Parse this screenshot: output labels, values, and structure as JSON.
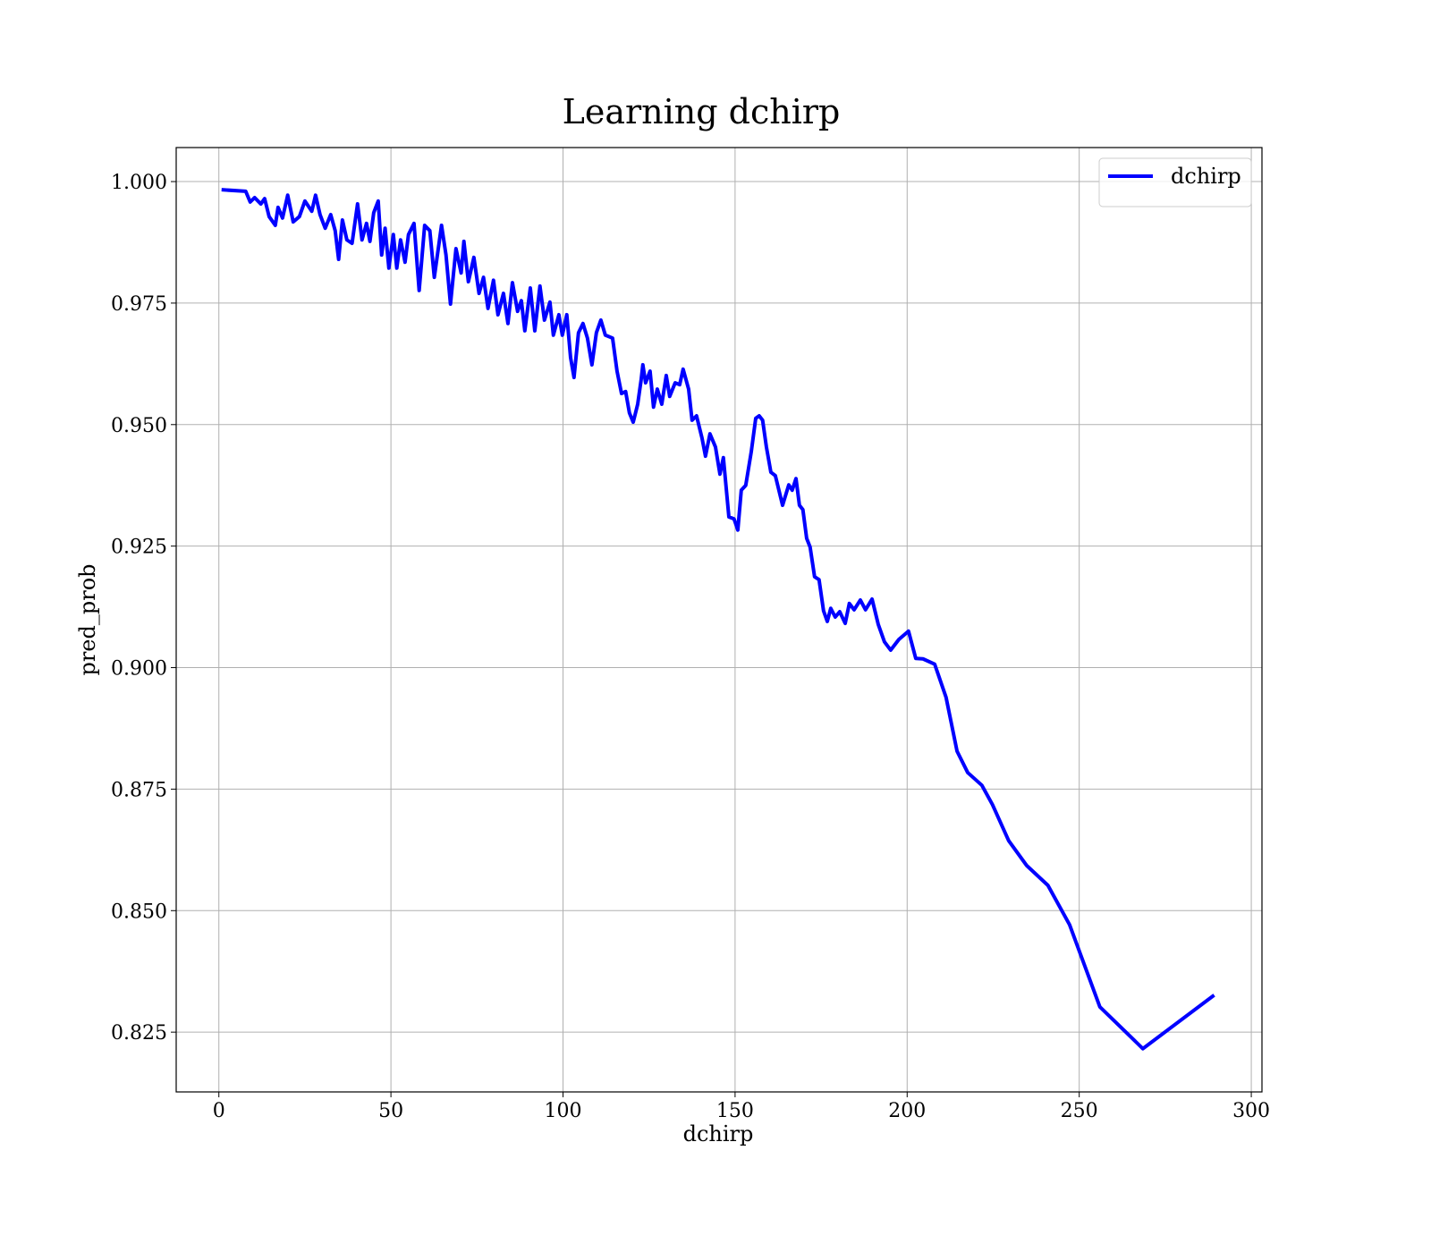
{
  "chart_data": {
    "type": "line",
    "title": "Learning dchirp",
    "x_label": "dchirp",
    "y_label": "pred_prob",
    "xlim": [
      -12.4,
      303.1
    ],
    "ylim": [
      0.8127,
      1.007
    ],
    "xticks": [
      0,
      50,
      100,
      150,
      200,
      250,
      300
    ],
    "yticks": [
      0.825,
      {
        "value": 0.85,
        "label": "0.850"
      },
      0.875,
      {
        "value": 0.9,
        "label": "0.900"
      },
      0.925,
      {
        "value": 0.95,
        "label": "0.950"
      },
      0.975,
      {
        "value": 1.0,
        "label": "1.000"
      }
    ],
    "grid": true,
    "legend": "upper right",
    "x": [
      1.3,
      7.8,
      9.1,
      10.4,
      12.2,
      13.3,
      14.6,
      16.4,
      17.2,
      18.5,
      20.0,
      21.6,
      23.4,
      25.0,
      27.0,
      28.1,
      29.4,
      30.9,
      32.5,
      33.8,
      34.8,
      35.9,
      37.2,
      38.7,
      40.3,
      41.6,
      42.9,
      43.9,
      45.0,
      46.3,
      47.3,
      48.3,
      49.4,
      50.7,
      51.7,
      52.8,
      54.1,
      55.1,
      56.7,
      58.2,
      59.8,
      61.3,
      62.6,
      64.7,
      66.0,
      67.3,
      68.9,
      70.4,
      71.2,
      72.5,
      74.1,
      75.6,
      76.9,
      78.2,
      79.8,
      81.1,
      82.7,
      84.0,
      85.3,
      86.8,
      87.9,
      88.9,
      90.5,
      91.8,
      93.3,
      94.6,
      96.2,
      97.2,
      98.8,
      99.8,
      101.1,
      102.2,
      103.2,
      104.5,
      105.8,
      107.1,
      108.4,
      109.7,
      111.0,
      112.3,
      114.4,
      115.7,
      117.0,
      118.2,
      119.3,
      120.4,
      121.7,
      122.7,
      123.2,
      124.0,
      125.3,
      126.3,
      127.4,
      128.7,
      130.0,
      131.0,
      132.6,
      133.9,
      134.9,
      136.5,
      137.5,
      138.8,
      140.4,
      141.4,
      142.7,
      144.3,
      145.6,
      146.6,
      148.2,
      149.7,
      150.8,
      151.8,
      153.1,
      154.7,
      156.0,
      157.0,
      158.0,
      159.1,
      160.4,
      161.7,
      163.8,
      165.6,
      166.6,
      167.7,
      168.7,
      169.7,
      170.8,
      171.8,
      173.1,
      174.4,
      175.7,
      176.8,
      177.8,
      179.1,
      180.4,
      182.0,
      183.2,
      184.6,
      186.4,
      187.9,
      189.8,
      191.6,
      193.4,
      195.2,
      197.6,
      200.4,
      202.5,
      204.6,
      208.0,
      211.3,
      214.5,
      217.6,
      221.7,
      224.8,
      229.5,
      234.7,
      240.9,
      247.2,
      256.0,
      268.5,
      288.8
    ],
    "series": [
      {
        "name": "dchirp",
        "color": "#0000ff",
        "values": [
          0.9983,
          0.998,
          0.9958,
          0.9967,
          0.9954,
          0.9965,
          0.9928,
          0.991,
          0.9947,
          0.9925,
          0.9972,
          0.9917,
          0.9928,
          0.996,
          0.9939,
          0.9972,
          0.9932,
          0.9904,
          0.9932,
          0.9899,
          0.984,
          0.9921,
          0.988,
          0.9873,
          0.9954,
          0.988,
          0.9914,
          0.9877,
          0.9936,
          0.996,
          0.9849,
          0.9904,
          0.9822,
          0.9891,
          0.9822,
          0.988,
          0.9834,
          0.9891,
          0.9914,
          0.9776,
          0.991,
          0.9899,
          0.9803,
          0.991,
          0.9849,
          0.9748,
          0.9862,
          0.9812,
          0.9877,
          0.9794,
          0.9844,
          0.977,
          0.9803,
          0.9739,
          0.9797,
          0.9726,
          0.977,
          0.9708,
          0.9792,
          0.9733,
          0.9755,
          0.9693,
          0.9781,
          0.9693,
          0.9785,
          0.9715,
          0.9752,
          0.9684,
          0.9726,
          0.9684,
          0.9726,
          0.9638,
          0.9597,
          0.9689,
          0.9708,
          0.9678,
          0.9623,
          0.9689,
          0.9715,
          0.9684,
          0.9678,
          0.961,
          0.9564,
          0.9568,
          0.9524,
          0.9505,
          0.9542,
          0.9592,
          0.9623,
          0.9586,
          0.961,
          0.9536,
          0.9573,
          0.9542,
          0.9601,
          0.9558,
          0.9586,
          0.9582,
          0.9614,
          0.9573,
          0.9509,
          0.9518,
          0.9472,
          0.9435,
          0.9481,
          0.9454,
          0.9398,
          0.9432,
          0.931,
          0.9306,
          0.9283,
          0.9365,
          0.9375,
          0.9444,
          0.9513,
          0.9518,
          0.9509,
          0.9454,
          0.9402,
          0.9395,
          0.9334,
          0.9376,
          0.9365,
          0.9389,
          0.9334,
          0.9325,
          0.9266,
          0.9248,
          0.9187,
          0.9181,
          0.9117,
          0.9095,
          0.9122,
          0.9104,
          0.9115,
          0.9091,
          0.9132,
          0.9119,
          0.9139,
          0.9119,
          0.9141,
          0.9089,
          0.9053,
          0.9036,
          0.9058,
          0.9075,
          0.9019,
          0.9018,
          0.9007,
          0.8939,
          0.8828,
          0.8784,
          0.8758,
          0.8718,
          0.8644,
          0.8593,
          0.8552,
          0.8471,
          0.8302,
          0.8216,
          0.8324
        ]
      }
    ]
  }
}
